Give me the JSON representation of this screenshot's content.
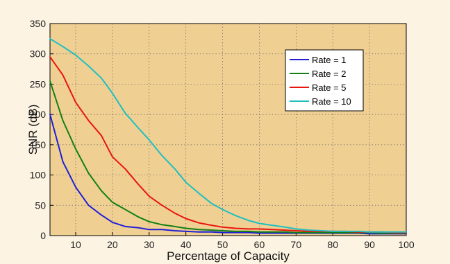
{
  "chart_data": {
    "type": "line",
    "xlabel": "Percentage of Capacity",
    "ylabel": "SNR (dB)",
    "xlim": [
      3,
      100
    ],
    "ylim": [
      0,
      350
    ],
    "xticks": [
      10,
      20,
      30,
      40,
      50,
      60,
      70,
      80,
      90,
      100
    ],
    "yticks": [
      0,
      50,
      100,
      150,
      200,
      250,
      300,
      350
    ],
    "grid": true,
    "legend_position": "top-right",
    "x": [
      3,
      6.5,
      10,
      13.5,
      17,
      20,
      23.5,
      27,
      30,
      33.5,
      37,
      40,
      43.5,
      47,
      50,
      53.5,
      57,
      60,
      63.5,
      67,
      70,
      73.5,
      77,
      80,
      83.5,
      87,
      90,
      93.5,
      97,
      100
    ],
    "series": [
      {
        "name": "Rate = 1",
        "color": "#1f1fd6",
        "values": [
          200,
          122,
          80,
          50,
          34,
          22,
          15,
          13,
          10,
          10,
          8,
          7,
          6,
          6,
          5,
          5,
          5,
          4,
          4,
          4,
          4,
          4,
          4,
          4,
          4,
          4,
          3,
          3,
          3,
          3
        ]
      },
      {
        "name": "Rate = 2",
        "color": "#128012",
        "values": [
          255,
          190,
          143,
          103,
          74,
          55,
          43,
          31,
          23,
          18,
          15,
          12,
          10,
          9,
          8,
          7,
          7,
          6,
          6,
          6,
          5,
          5,
          5,
          5,
          5,
          5,
          5,
          4,
          4,
          4
        ]
      },
      {
        "name": "Rate = 5",
        "color": "#e8160e",
        "values": [
          295,
          265,
          220,
          190,
          165,
          130,
          110,
          85,
          65,
          50,
          37,
          28,
          21,
          17,
          14,
          12,
          11,
          11,
          10,
          9,
          8,
          7,
          7,
          7,
          7,
          6,
          6,
          6,
          5,
          5
        ]
      },
      {
        "name": "Rate = 10",
        "color": "#1fbfc0",
        "values": [
          325,
          312,
          298,
          280,
          260,
          235,
          202,
          178,
          158,
          132,
          110,
          88,
          70,
          53,
          43,
          33,
          25,
          20,
          17,
          14,
          11,
          9,
          8,
          7,
          7,
          7,
          6,
          6,
          6,
          6
        ]
      }
    ]
  }
}
